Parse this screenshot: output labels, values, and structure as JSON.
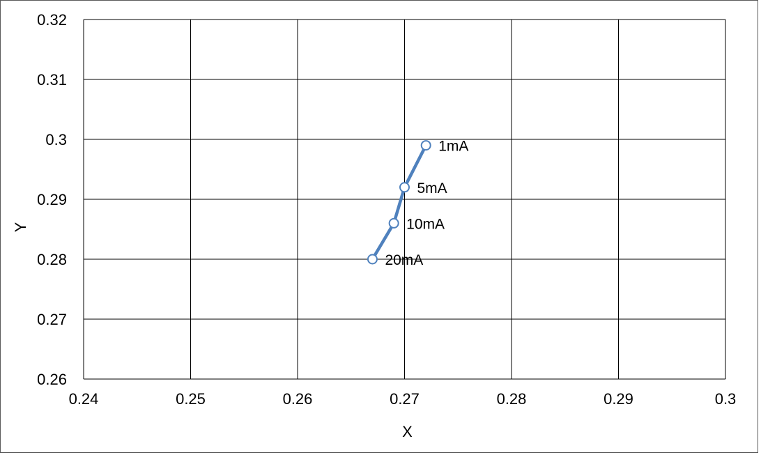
{
  "chart_data": {
    "type": "scatter",
    "title": "",
    "xlabel": "X",
    "ylabel": "Y",
    "xlim": [
      0.24,
      0.3
    ],
    "ylim": [
      0.26,
      0.32
    ],
    "x_ticks": [
      "0.24",
      "0.25",
      "0.26",
      "0.27",
      "0.28",
      "0.29",
      "0.3"
    ],
    "y_ticks": [
      "0.26",
      "0.27",
      "0.28",
      "0.29",
      "0.3",
      "0.31",
      "0.32"
    ],
    "grid": true,
    "legend": "none",
    "series": [
      {
        "color": "#4f81bd",
        "marker": "open-circle",
        "line": true,
        "points": [
          {
            "x": 0.272,
            "y": 0.299,
            "label": "1mA"
          },
          {
            "x": 0.27,
            "y": 0.292,
            "label": "5mA"
          },
          {
            "x": 0.269,
            "y": 0.286,
            "label": "10mA"
          },
          {
            "x": 0.267,
            "y": 0.28,
            "label": "20mA"
          }
        ]
      }
    ]
  }
}
